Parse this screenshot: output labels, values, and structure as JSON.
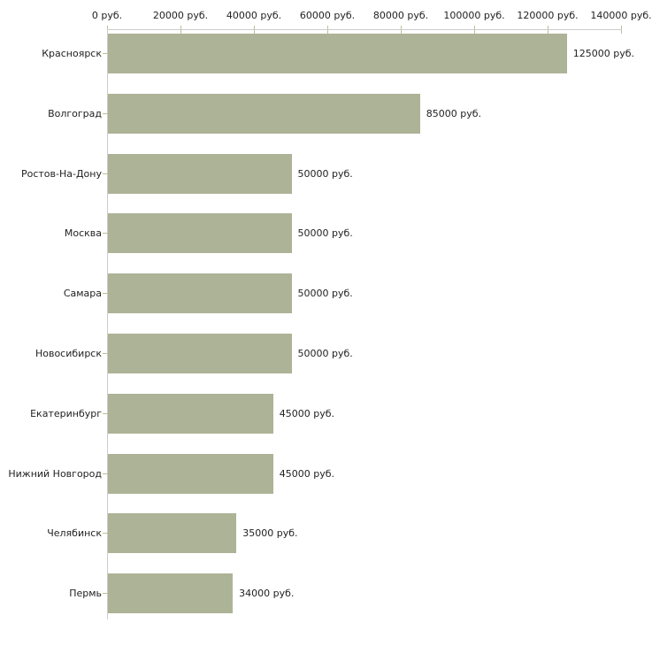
{
  "chart_data": {
    "type": "bar",
    "orientation": "horizontal",
    "title": "",
    "xlabel": "",
    "ylabel": "",
    "unit": "руб.",
    "categories": [
      "Красноярск",
      "Волгоград",
      "Ростов-На-Дону",
      "Москва",
      "Самара",
      "Новосибирск",
      "Екатеринбург",
      "Нижний Новгород",
      "Челябинск",
      "Пермь"
    ],
    "values": [
      125000,
      85000,
      50000,
      50000,
      50000,
      50000,
      45000,
      45000,
      35000,
      34000
    ],
    "value_labels": [
      "125000 руб.",
      "85000 руб.",
      "50000 руб.",
      "50000 руб.",
      "50000 руб.",
      "50000 руб.",
      "45000 руб.",
      "45000 руб.",
      "35000 руб.",
      "34000 руб."
    ],
    "x_tick_values": [
      0,
      20000,
      40000,
      60000,
      80000,
      100000,
      120000,
      140000
    ],
    "x_tick_labels": [
      "0 руб.",
      "20000 руб.",
      "40000 руб.",
      "60000 руб.",
      "80000 руб.",
      "100000 руб.",
      "120000 руб.",
      "140000 руб."
    ],
    "xlim": [
      0,
      140000
    ],
    "grid": false,
    "legend": "none",
    "colors": {
      "bar": "#adb396",
      "axis": "#cccccc",
      "tick": "#bebe96",
      "text": "#222222",
      "background": "#ffffff"
    }
  }
}
